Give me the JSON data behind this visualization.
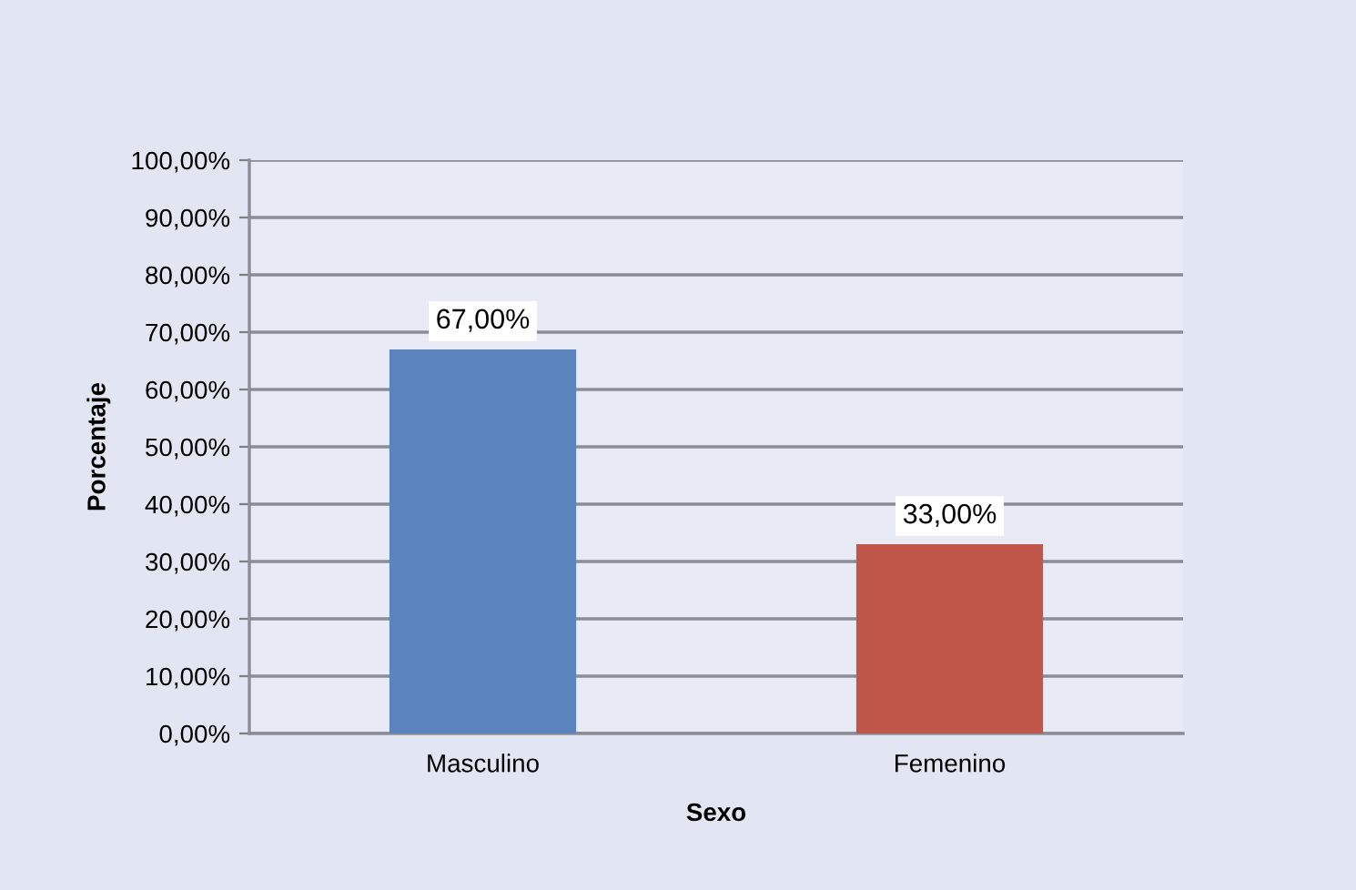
{
  "chart_data": {
    "type": "bar",
    "xlabel": "Sexo",
    "ylabel": "Porcentaje",
    "categories": [
      "Masculino",
      "Femenino"
    ],
    "values": [
      67,
      33
    ],
    "colors": [
      "#5b84bf",
      "#c0564a"
    ],
    "value_labels": [
      "67,00%",
      "33,00%"
    ],
    "ylim": [
      0,
      100
    ],
    "yticks": [
      {
        "value": 0,
        "label": "0,00%"
      },
      {
        "value": 10,
        "label": "10,00%"
      },
      {
        "value": 20,
        "label": "20,00%"
      },
      {
        "value": 30,
        "label": "30,00%"
      },
      {
        "value": 40,
        "label": "40,00%"
      },
      {
        "value": 50,
        "label": "50,00%"
      },
      {
        "value": 60,
        "label": "60,00%"
      },
      {
        "value": 70,
        "label": "70,00%"
      },
      {
        "value": 80,
        "label": "80,00%"
      },
      {
        "value": 90,
        "label": "90,00%"
      },
      {
        "value": 100,
        "label": "100,00%"
      }
    ],
    "grid": "y",
    "legend": false
  }
}
